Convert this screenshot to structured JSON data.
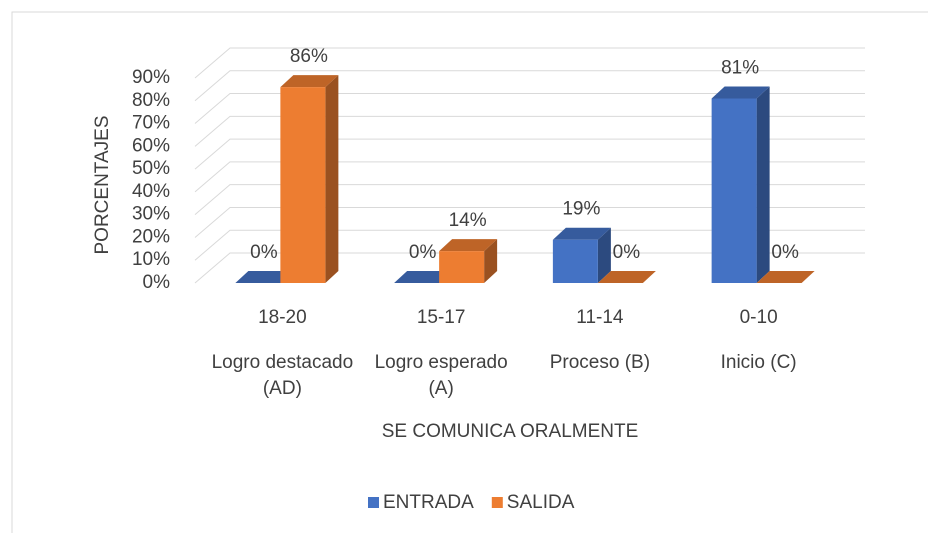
{
  "chart_data": {
    "type": "bar3d",
    "y_label": "PORCENTAJES",
    "x_label": "SE COMUNICA ORALMENTE",
    "categories": [
      "18-20",
      "15-17",
      "11-14",
      "0-10"
    ],
    "category_groups": [
      "Logro destacado (AD)",
      "Logro esperado (A)",
      "Proceso (B)",
      "Inicio (C)"
    ],
    "series": [
      {
        "name": "ENTRADA",
        "color": "#4472c4",
        "values": [
          0,
          0,
          19,
          81
        ],
        "value_labels": [
          "0%",
          "0%",
          "19%",
          "81%"
        ]
      },
      {
        "name": "SALIDA",
        "color": "#ed7d31",
        "values": [
          86,
          14,
          0,
          0
        ],
        "value_labels": [
          "86%",
          "14%",
          "0%",
          "0%"
        ]
      }
    ],
    "ylim": [
      0,
      90
    ],
    "yticks": [
      {
        "value": 0,
        "label": "0%"
      },
      {
        "value": 10,
        "label": "10%"
      },
      {
        "value": 20,
        "label": "20%"
      },
      {
        "value": 30,
        "label": "30%"
      },
      {
        "value": 40,
        "label": "40%"
      },
      {
        "value": 50,
        "label": "50%"
      },
      {
        "value": 60,
        "label": "60%"
      },
      {
        "value": 70,
        "label": "70%"
      },
      {
        "value": 80,
        "label": "80%"
      },
      {
        "value": 90,
        "label": "90%"
      }
    ],
    "grid": true,
    "legend": "bottom"
  }
}
